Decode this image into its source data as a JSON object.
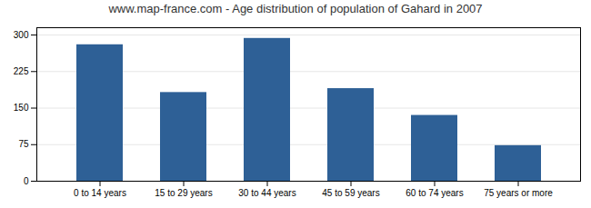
{
  "chart_data": {
    "type": "bar",
    "title": "www.map-france.com - Age distribution of population of Gahard in 2007",
    "categories": [
      "0 to 14 years",
      "15 to 29 years",
      "30 to 44 years",
      "45 to 59 years",
      "60 to 74 years",
      "75 years or more"
    ],
    "values": [
      280,
      182,
      293,
      190,
      135,
      73
    ],
    "color": "#2e6096",
    "ylim": [
      0,
      315
    ],
    "yticks": [
      0,
      75,
      150,
      225,
      300
    ],
    "grid": true
  }
}
